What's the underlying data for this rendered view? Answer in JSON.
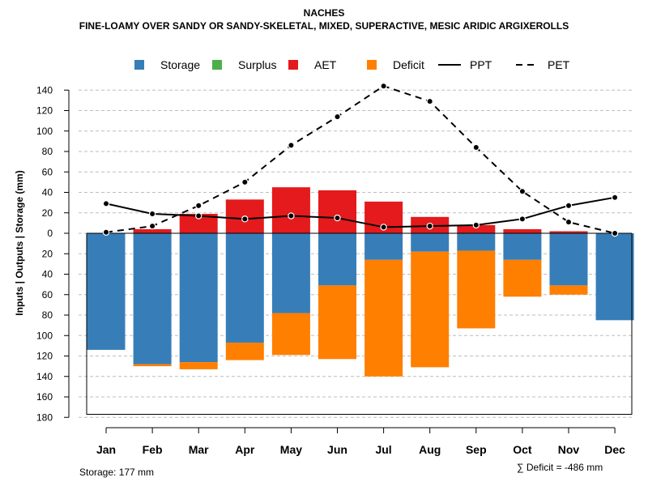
{
  "header": {
    "title": "NACHES",
    "subtitle": "FINE-LOAMY OVER SANDY OR SANDY-SKELETAL, MIXED, SUPERACTIVE, MESIC ARIDIC ARGIXEROLLS"
  },
  "footer": {
    "storage_note": "Storage: 177 mm",
    "deficit_note": "∑ Deficit = -486 mm"
  },
  "colors": {
    "storage": "#377EB8",
    "surplus": "#4DAF4A",
    "aet": "#E41A1C",
    "deficit": "#FF7F00",
    "line": "#000000",
    "grid": "#BEBEBE"
  },
  "chart_data": {
    "type": "bar",
    "title": "NACHES",
    "subtitle": "FINE-LOAMY OVER SANDY OR SANDY-SKELETAL, MIXED, SUPERACTIVE, MESIC ARIDIC ARGIXEROLLS",
    "ylabel": "Inputs | Outputs | Storage    (mm)",
    "xlabel": "",
    "ylim": [
      -180,
      150
    ],
    "yticks": [
      140,
      120,
      100,
      80,
      60,
      40,
      20,
      0,
      -20,
      -40,
      -60,
      -80,
      -100,
      -120,
      -140,
      -160,
      -180
    ],
    "ytick_labels": [
      "140",
      "120",
      "100",
      "80",
      "60",
      "40",
      "20",
      "0",
      "20",
      "40",
      "60",
      "80",
      "100",
      "120",
      "140",
      "160",
      "180"
    ],
    "storage_capacity": 177,
    "categories": [
      "Jan",
      "Feb",
      "Mar",
      "Apr",
      "May",
      "Jun",
      "Jul",
      "Aug",
      "Sep",
      "Oct",
      "Nov",
      "Dec"
    ],
    "legend": [
      {
        "label": "Storage",
        "kind": "box",
        "color_key": "storage"
      },
      {
        "label": "Surplus",
        "kind": "box",
        "color_key": "surplus"
      },
      {
        "label": "AET",
        "kind": "box",
        "color_key": "aet"
      },
      {
        "label": "Deficit",
        "kind": "box",
        "color_key": "deficit"
      },
      {
        "label": "PPT",
        "kind": "solid"
      },
      {
        "label": "PET",
        "kind": "dashed"
      }
    ],
    "series": [
      {
        "name": "AET",
        "values": [
          0,
          4,
          19,
          33,
          45,
          42,
          31,
          16,
          8,
          4,
          2,
          0
        ]
      },
      {
        "name": "Surplus",
        "values": [
          0,
          0,
          0,
          0,
          0,
          0,
          0,
          0,
          0,
          0,
          0,
          0
        ]
      },
      {
        "name": "Storage",
        "values": [
          114,
          128,
          126,
          107,
          78,
          51,
          26,
          18,
          17,
          26,
          51,
          85
        ]
      },
      {
        "name": "Deficit",
        "values": [
          0,
          2,
          7,
          17,
          41,
          72,
          114,
          113,
          76,
          36,
          9,
          0
        ]
      },
      {
        "name": "PPT",
        "values": [
          29,
          19,
          17,
          14,
          17,
          15,
          6,
          7,
          8,
          14,
          27,
          35
        ]
      },
      {
        "name": "PET",
        "values": [
          1,
          7,
          27,
          50,
          86,
          114,
          144,
          129,
          84,
          41,
          11,
          0
        ]
      }
    ]
  }
}
